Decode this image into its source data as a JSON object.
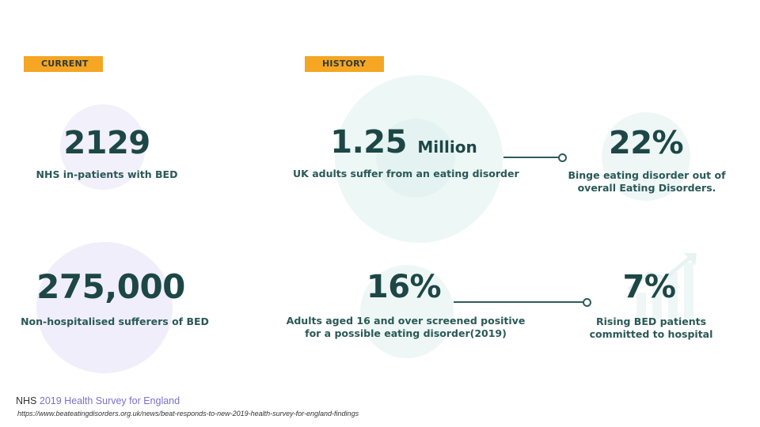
{
  "tags": {
    "current": "CURRENT",
    "history": "HISTORY"
  },
  "stats": {
    "nhs_inpatients": {
      "value": "2129",
      "label": "NHS in-patients with BED"
    },
    "non_hospitalised": {
      "value": "275,000",
      "label": "Non-hospitalised sufferers of BED"
    },
    "uk_adults": {
      "value": "1.25",
      "unit": "Million",
      "label": "UK adults suffer from an eating disorder"
    },
    "binge_share": {
      "value": "22%",
      "label_line1": "Binge eating disorder out of",
      "label_line2": "overall Eating Disorders."
    },
    "screened": {
      "value": "16%",
      "label_line1": "Adults aged 16 and over screened positive",
      "label_line2": "for a possible eating disorder(2019)"
    },
    "rising": {
      "value": "7%",
      "label_line1": "Rising BED patients",
      "label_line2": "committed to hospital"
    }
  },
  "source": {
    "prefix": "NHS",
    "title": "2019 Health Survey for England",
    "url": "https://www.beateatingdisorders.org.uk/news/beat-responds-to-new-2019-health-survey-for-england-findings"
  },
  "colors": {
    "tag": "#f5a623",
    "stat_text": "#1d4746",
    "source_title": "#7b6fd0"
  },
  "icons": [
    "bar-chart-growth-icon",
    "connector-dot-icon"
  ]
}
